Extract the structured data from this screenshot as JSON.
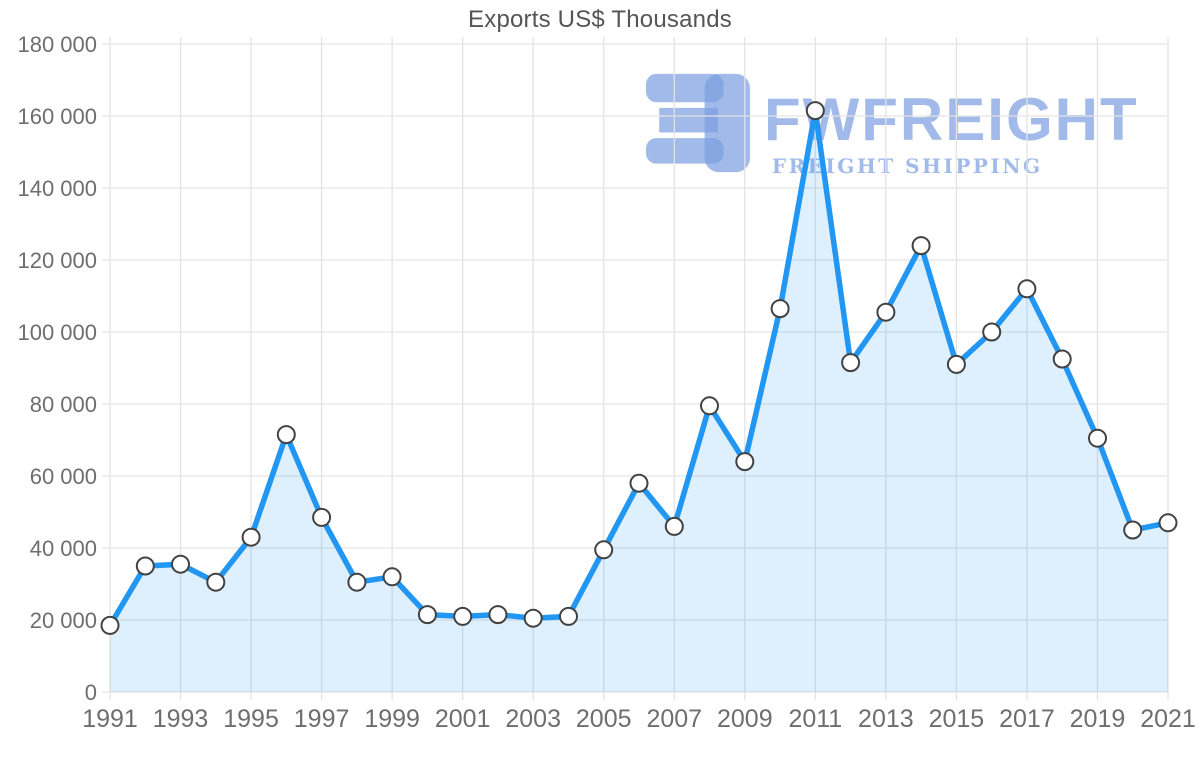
{
  "title": "Exports US$ Thousands",
  "watermark": {
    "brand": "FWFREIGHT",
    "tagline": "FREIGHT SHIPPING",
    "logo_icon": "fwfreight-mark-icon",
    "color": "#aac4ec"
  },
  "colors": {
    "line": "#2196f3",
    "area": "rgba(33,150,243,0.15)",
    "grid": "#e3e3e3",
    "axis_text": "#6e6e6e",
    "title_text": "#555555",
    "point_fill": "#ffffff",
    "point_stroke": "#424242"
  },
  "chart_data": {
    "type": "area",
    "title": "Exports US$ Thousands",
    "xlabel": "",
    "ylabel": "",
    "x": [
      1991,
      1992,
      1993,
      1994,
      1995,
      1996,
      1997,
      1998,
      1999,
      2000,
      2001,
      2002,
      2003,
      2004,
      2005,
      2006,
      2007,
      2008,
      2009,
      2010,
      2011,
      2012,
      2013,
      2014,
      2015,
      2016,
      2017,
      2018,
      2019,
      2020,
      2021
    ],
    "series": [
      {
        "name": "Exports US$ Thousands",
        "values": [
          18500,
          35000,
          35500,
          30500,
          43000,
          71500,
          48500,
          30500,
          32000,
          21500,
          21000,
          21500,
          20500,
          21000,
          39500,
          58000,
          46000,
          79500,
          64000,
          106500,
          161500,
          91500,
          105500,
          124000,
          91000,
          100000,
          112000,
          92500,
          70500,
          45000,
          47000
        ]
      }
    ],
    "ylim": [
      0,
      180000
    ],
    "ytick_step": 20000,
    "ytick_labels": [
      "0",
      "20 000",
      "40 000",
      "60 000",
      "80 000",
      "100 000",
      "120 000",
      "140 000",
      "160 000",
      "180 000"
    ],
    "xtick_years": [
      1991,
      1993,
      1995,
      1997,
      1999,
      2001,
      2003,
      2005,
      2007,
      2009,
      2011,
      2013,
      2015,
      2017,
      2019,
      2021
    ],
    "grid": true,
    "legend": false,
    "marker": "circle"
  }
}
